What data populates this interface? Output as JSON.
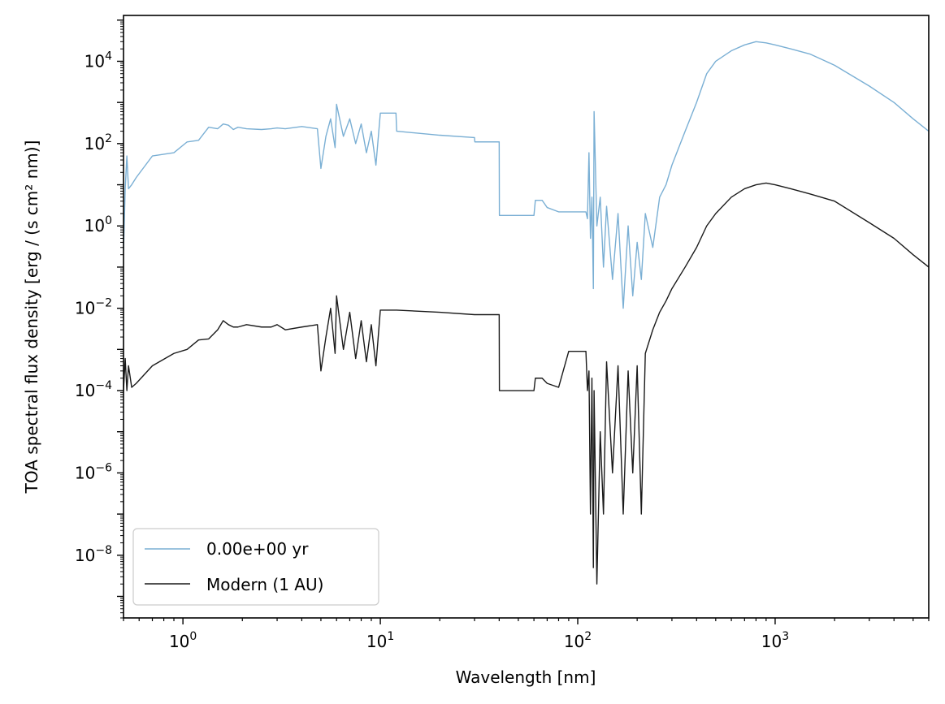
{
  "chart_data": {
    "type": "line",
    "title": "",
    "xlabel": "Wavelength [nm]",
    "ylabel": "TOA spectral flux density [erg / (s cm² nm)]",
    "xscale": "log",
    "yscale": "log",
    "xlim": [
      0.5,
      6000
    ],
    "ylim": [
      3e-10,
      130000.0
    ],
    "grid": false,
    "legend_position": "lower-left",
    "x_tick_values": [
      1,
      10,
      100,
      1000
    ],
    "x_tick_labels": [
      {
        "base": "10",
        "exp": "0"
      },
      {
        "base": "10",
        "exp": "1"
      },
      {
        "base": "10",
        "exp": "2"
      },
      {
        "base": "10",
        "exp": "3"
      }
    ],
    "y_tick_values": [
      1e-08,
      1e-06,
      0.0001,
      0.01,
      1,
      100,
      10000
    ],
    "y_tick_labels": [
      {
        "base": "10",
        "exp": "−8"
      },
      {
        "base": "10",
        "exp": "−6"
      },
      {
        "base": "10",
        "exp": "−4"
      },
      {
        "base": "10",
        "exp": "−2"
      },
      {
        "base": "10",
        "exp": "0"
      },
      {
        "base": "10",
        "exp": "2"
      },
      {
        "base": "10",
        "exp": "4"
      }
    ],
    "series": [
      {
        "name": "0.00e+00 yr",
        "color": "#7aafd4",
        "x": [
          0.5,
          0.51,
          0.52,
          0.53,
          0.55,
          0.58,
          0.7,
          0.9,
          1.05,
          1.2,
          1.35,
          1.5,
          1.6,
          1.7,
          1.8,
          1.9,
          2.1,
          2.5,
          2.8,
          3.0,
          3.3,
          4.0,
          4.8,
          5.0,
          5.3,
          5.6,
          5.9,
          6.0,
          6.5,
          7.0,
          7.5,
          8.0,
          8.5,
          9.0,
          9.5,
          10.0,
          12,
          12.1,
          20,
          30,
          30.1,
          40,
          40.1,
          60,
          61,
          66,
          70,
          80,
          90,
          100,
          110,
          112,
          114,
          116,
          118,
          120,
          121,
          125,
          130,
          135,
          140,
          150,
          160,
          170,
          180,
          190,
          200,
          210,
          220,
          240,
          260,
          280,
          300,
          350,
          400,
          450,
          500,
          600,
          700,
          800,
          900,
          1000,
          1200,
          1500,
          2000,
          3000,
          4000,
          5000,
          6000
        ],
        "values": [
          0.25,
          8,
          50,
          8,
          10,
          15,
          50,
          60,
          110,
          120,
          250,
          230,
          300,
          280,
          220,
          250,
          230,
          220,
          230,
          240,
          230,
          260,
          230,
          25,
          150,
          400,
          80,
          900,
          150,
          400,
          100,
          300,
          60,
          200,
          30,
          550,
          550,
          200,
          160,
          140,
          110,
          110,
          1.8,
          1.8,
          4.2,
          4.2,
          2.8,
          2.2,
          2.2,
          2.2,
          2.2,
          1.5,
          60,
          0.5,
          5,
          0.03,
          600,
          1.0,
          5,
          0.1,
          3,
          0.05,
          2,
          0.01,
          1.0,
          0.02,
          0.4,
          0.05,
          2,
          0.3,
          5,
          10,
          30,
          200,
          1000,
          5000,
          10000,
          18000,
          25000,
          30000,
          28000,
          25000,
          20000,
          15000,
          8000,
          2500,
          1000,
          400,
          200
        ]
      },
      {
        "name": "Modern (1 AU)",
        "color": "#1a1a1a",
        "x": [
          0.5,
          0.51,
          0.52,
          0.53,
          0.55,
          0.58,
          0.7,
          0.9,
          1.05,
          1.2,
          1.35,
          1.5,
          1.6,
          1.7,
          1.8,
          1.9,
          2.1,
          2.5,
          2.8,
          3.0,
          3.3,
          4.0,
          4.8,
          5.0,
          5.3,
          5.6,
          5.9,
          6.0,
          6.5,
          7.0,
          7.5,
          8.0,
          8.5,
          9.0,
          9.5,
          10.0,
          12,
          12.1,
          20,
          30,
          30.1,
          40,
          40.1,
          60,
          61,
          66,
          70,
          80,
          90,
          100,
          110,
          112,
          114,
          116,
          118,
          120,
          121,
          125,
          130,
          135,
          140,
          150,
          160,
          170,
          180,
          190,
          200,
          210,
          220,
          240,
          260,
          280,
          300,
          350,
          400,
          450,
          500,
          600,
          700,
          800,
          900,
          1000,
          1200,
          1500,
          2000,
          3000,
          4000,
          5000,
          6000
        ],
        "values": [
          0.0001,
          0.0006,
          0.0001,
          0.0004,
          0.00012,
          0.00015,
          0.0004,
          0.0008,
          0.001,
          0.0017,
          0.0018,
          0.003,
          0.005,
          0.004,
          0.0035,
          0.0035,
          0.004,
          0.0035,
          0.0035,
          0.004,
          0.003,
          0.0035,
          0.004,
          0.0003,
          0.002,
          0.01,
          0.0008,
          0.02,
          0.001,
          0.008,
          0.0006,
          0.005,
          0.0005,
          0.004,
          0.0004,
          0.009,
          0.009,
          0.009,
          0.008,
          0.007,
          0.007,
          0.007,
          0.0001,
          0.0001,
          0.0002,
          0.0002,
          0.00015,
          0.00012,
          0.0009,
          0.0009,
          0.0009,
          0.0001,
          0.0003,
          1e-07,
          0.0002,
          5e-09,
          0.0001,
          2e-09,
          1e-05,
          1e-07,
          0.0005,
          1e-06,
          0.0004,
          1e-07,
          0.0003,
          1e-06,
          0.0004,
          1e-07,
          0.0008,
          0.003,
          0.008,
          0.015,
          0.03,
          0.1,
          0.3,
          1.0,
          2.0,
          5.0,
          8.0,
          10.0,
          11.0,
          10.0,
          8.0,
          6.0,
          4.0,
          1.2,
          0.5,
          0.2,
          0.1
        ]
      }
    ]
  }
}
